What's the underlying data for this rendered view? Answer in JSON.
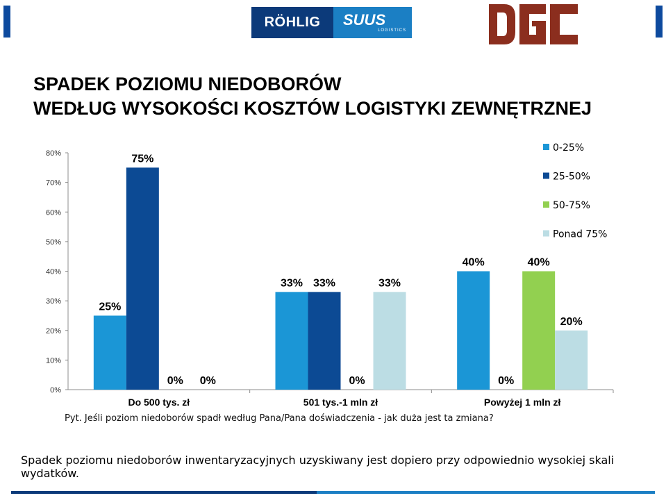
{
  "header": {
    "rohlig_text": "RÖHLIG",
    "suus_text": "SUUS",
    "suus_sub": "LOGISTICS",
    "dgc_text": "DGC"
  },
  "title": {
    "line1": "SPADEK POZIOMU NIEDOBORÓW",
    "line2": "WEDŁUG WYSOKOŚCI KOSZTÓW LOGISTYKI ZEWNĘTRZNEJ"
  },
  "question": "Pyt. Jeśli poziom niedoborów spadł według Pana/Pana doświadczenia - jak duża jest ta zmiana?",
  "caption": "Spadek poziomu niedoborów inwentaryzacyjnych uzyskiwany jest dopiero przy odpowiednio wysokiej skali wydatków.",
  "colors": {
    "series": [
      "#1b96d6",
      "#0c4a94",
      "#92d050",
      "#bcdde4"
    ],
    "accent_dark": "#0c3a7a",
    "accent_light": "#1b7fc4",
    "dgc_red": "#8b2e1e"
  },
  "chart_data": {
    "type": "bar",
    "categories": [
      "Do 500 tys. zł",
      "501 tys.-1 mln zł",
      "Powyżej 1 mln zł"
    ],
    "series": [
      {
        "name": "0-25%",
        "values": [
          25,
          33,
          40
        ]
      },
      {
        "name": "25-50%",
        "values": [
          75,
          33,
          0
        ]
      },
      {
        "name": "50-75%",
        "values": [
          0,
          0,
          40
        ]
      },
      {
        "name": "Ponad 75%",
        "values": [
          0,
          33,
          20
        ]
      }
    ],
    "data_labels": [
      [
        "25%",
        "33%",
        "40%"
      ],
      [
        "75%",
        "33%",
        "0%"
      ],
      [
        "0%",
        "0%",
        "40%"
      ],
      [
        "0%",
        "33%",
        "20%"
      ]
    ],
    "yticks": [
      "0%",
      "10%",
      "20%",
      "30%",
      "40%",
      "50%",
      "60%",
      "70%",
      "80%"
    ],
    "ylim": [
      0,
      80
    ],
    "legend_position": "top-right",
    "grid": false
  }
}
